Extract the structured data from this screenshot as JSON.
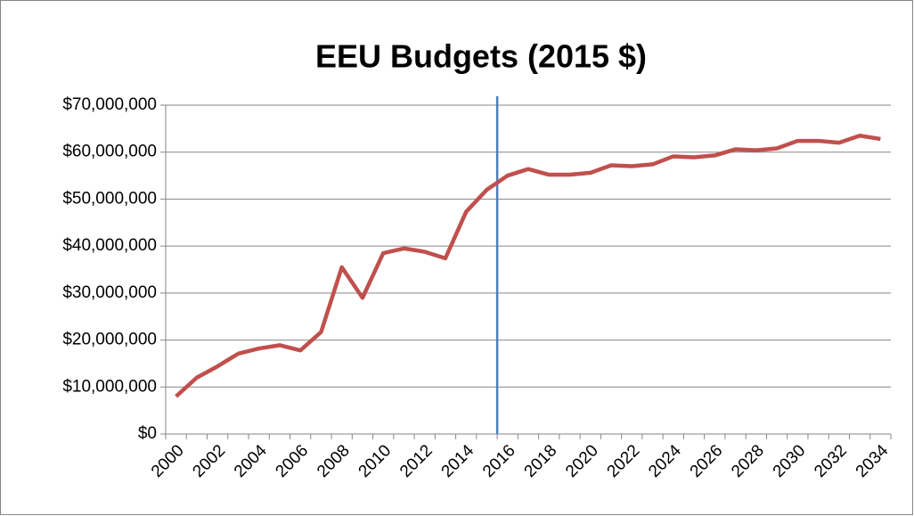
{
  "chart_data": {
    "type": "line",
    "title": "EEU Budgets (2015 $)",
    "categories": [
      "2000",
      null,
      "2002",
      null,
      "2004",
      null,
      "2006",
      null,
      "2008",
      null,
      "2010",
      null,
      "2012",
      null,
      "2014",
      null,
      "2016",
      null,
      "2018",
      null,
      "2020",
      null,
      "2022",
      null,
      "2024",
      null,
      "2026",
      null,
      "2028",
      null,
      "2030",
      null,
      "2032",
      null,
      "2034"
    ],
    "series": [
      {
        "name": "EEU Budgets",
        "color": "#c0504d",
        "values": [
          8000000,
          12000000,
          14400000,
          17100000,
          18200000,
          18900000,
          17800000,
          21700000,
          35500000,
          29000000,
          38500000,
          39500000,
          38800000,
          37400000,
          47300000,
          52000000,
          55000000,
          56400000,
          55200000,
          55200000,
          55600000,
          57200000,
          57000000,
          57400000,
          59100000,
          58900000,
          59300000,
          60600000,
          60400000,
          60800000,
          62400000,
          62400000,
          62000000,
          63500000,
          62800000
        ]
      }
    ],
    "ylim": [
      0,
      70000000
    ],
    "yticks": [
      {
        "value": 0,
        "label": "$0"
      },
      {
        "value": 10000000,
        "label": "$10,000,000"
      },
      {
        "value": 20000000,
        "label": "$20,000,000"
      },
      {
        "value": 30000000,
        "label": "$30,000,000"
      },
      {
        "value": 40000000,
        "label": "$40,000,000"
      },
      {
        "value": 50000000,
        "label": "$50,000,000"
      },
      {
        "value": 60000000,
        "label": "$60,000,000"
      },
      {
        "value": 70000000,
        "label": "$70,000,000"
      }
    ],
    "grid": true,
    "vline": {
      "after_category": 15,
      "color": "#4a7ebb"
    }
  }
}
